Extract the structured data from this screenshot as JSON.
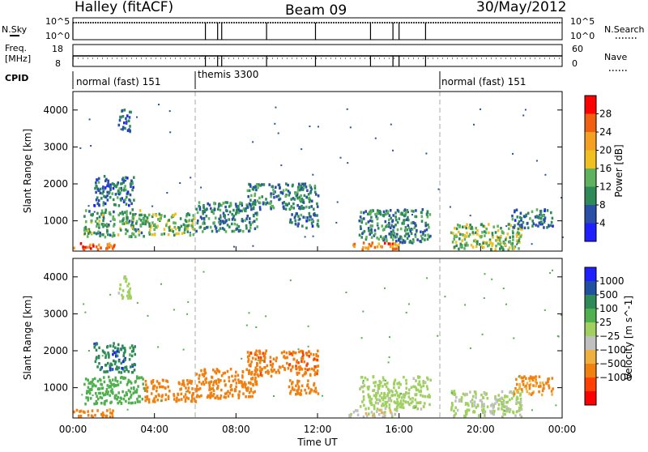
{
  "header": {
    "station": "Halley (fitACF)",
    "beam": "Beam 09",
    "date": "30/May/2012"
  },
  "strips": {
    "nsky_label": "N.Sky",
    "nsky_ticks": [
      "10^5",
      "10^0"
    ],
    "nsearch_label": "N.Search",
    "nsearch_ticks": [
      "10^5",
      "10^0"
    ],
    "freq_label_1": "Freq.",
    "freq_label_2": "[MHz]",
    "freq_ticks": [
      "18",
      "8"
    ],
    "nave_label": "Nave",
    "nave_ticks": [
      "60",
      "0"
    ],
    "cpid_label": "CPID",
    "cpid_segments": [
      "normal (fast) 151",
      "themis 3300",
      "normal (fast) 151"
    ]
  },
  "colors": {
    "power_scale": [
      "#1f1fff",
      "#2a4fa8",
      "#2e8b57",
      "#5fb35f",
      "#f0c020",
      "#f4a020",
      "#f06010",
      "#ff0000"
    ],
    "velocity_scale": [
      "#ff0000",
      "#ff4000",
      "#f08010",
      "#f0b040",
      "#c0c0c0",
      "#a0d060",
      "#50b050",
      "#2e8b57",
      "#2050a0",
      "#1f1fff"
    ]
  },
  "chart_data": [
    {
      "type": "heatmap",
      "title": "",
      "xlabel": "Time UT",
      "ylabel": "Slant Range [km]",
      "x_ticks": [
        "00:00",
        "04:00",
        "08:00",
        "12:00",
        "16:00",
        "20:00",
        "00:00"
      ],
      "xlim": [
        "00:00",
        "24:00"
      ],
      "y_ticks": [
        1000,
        2000,
        3000,
        4000
      ],
      "ylim": [
        180,
        4500
      ],
      "colorbar_label": "Power [dB]",
      "colorbar_ticks": [
        4,
        8,
        12,
        16,
        20,
        24,
        28
      ],
      "cpid_boundaries_hours": [
        6,
        18
      ],
      "echo_regions": [
        {
          "t_start": 0.0,
          "t_end": 2.0,
          "range_min": 200,
          "range_max": 400,
          "power_db": 26
        },
        {
          "t_start": 0.5,
          "t_end": 3.5,
          "range_min": 550,
          "range_max": 1300,
          "power_db": 12
        },
        {
          "t_start": 2.2,
          "t_end": 2.8,
          "range_min": 3400,
          "range_max": 4000,
          "power_db": 6
        },
        {
          "t_start": 1.0,
          "t_end": 3.0,
          "range_min": 1400,
          "range_max": 2200,
          "power_db": 8
        },
        {
          "t_start": 3.5,
          "t_end": 6.0,
          "range_min": 600,
          "range_max": 1200,
          "power_db": 14
        },
        {
          "t_start": 6.0,
          "t_end": 9.0,
          "range_min": 700,
          "range_max": 1500,
          "power_db": 10
        },
        {
          "t_start": 8.5,
          "t_end": 12.0,
          "range_min": 1300,
          "range_max": 2000,
          "power_db": 9
        },
        {
          "t_start": 10.5,
          "t_end": 12.0,
          "range_min": 800,
          "range_max": 1200,
          "power_db": 8
        },
        {
          "t_start": 13.5,
          "t_end": 16.0,
          "range_min": 200,
          "range_max": 400,
          "power_db": 24
        },
        {
          "t_start": 14.0,
          "t_end": 17.5,
          "range_min": 400,
          "range_max": 1300,
          "power_db": 10
        },
        {
          "t_start": 18.5,
          "t_end": 22.0,
          "range_min": 200,
          "range_max": 900,
          "power_db": 14
        },
        {
          "t_start": 21.5,
          "t_end": 23.5,
          "range_min": 800,
          "range_max": 1300,
          "power_db": 8
        }
      ]
    },
    {
      "type": "heatmap",
      "title": "",
      "xlabel": "Time UT",
      "ylabel": "Slant Range [km]",
      "x_ticks": [
        "00:00",
        "04:00",
        "08:00",
        "12:00",
        "16:00",
        "20:00",
        "00:00"
      ],
      "xlim": [
        "00:00",
        "24:00"
      ],
      "y_ticks": [
        1000,
        2000,
        3000,
        4000
      ],
      "ylim": [
        180,
        4500
      ],
      "colorbar_label": "Velocity [m s^-1]",
      "colorbar_ticks": [
        "1000",
        "500",
        "100",
        "25",
        "−25",
        "−100",
        "−500",
        "−1000"
      ],
      "cpid_boundaries_hours": [
        6,
        18
      ],
      "echo_regions": [
        {
          "t_start": 0.0,
          "t_end": 2.0,
          "range_min": 200,
          "range_max": 400,
          "velocity": -150
        },
        {
          "t_start": 0.5,
          "t_end": 3.5,
          "range_min": 550,
          "range_max": 1300,
          "velocity": 200
        },
        {
          "t_start": 2.2,
          "t_end": 2.8,
          "range_min": 3400,
          "range_max": 4000,
          "velocity": 50
        },
        {
          "t_start": 1.0,
          "t_end": 3.0,
          "range_min": 1400,
          "range_max": 2200,
          "velocity": 800
        },
        {
          "t_start": 3.5,
          "t_end": 6.0,
          "range_min": 600,
          "range_max": 1200,
          "velocity": -300
        },
        {
          "t_start": 6.0,
          "t_end": 9.0,
          "range_min": 700,
          "range_max": 1500,
          "velocity": -200
        },
        {
          "t_start": 8.5,
          "t_end": 12.0,
          "range_min": 1300,
          "range_max": 2000,
          "velocity": -400
        },
        {
          "t_start": 10.5,
          "t_end": 12.0,
          "range_min": 800,
          "range_max": 1200,
          "velocity": -150
        },
        {
          "t_start": 13.5,
          "t_end": 16.0,
          "range_min": 200,
          "range_max": 400,
          "velocity": 0
        },
        {
          "t_start": 14.0,
          "t_end": 17.5,
          "range_min": 400,
          "range_max": 1300,
          "velocity": 60
        },
        {
          "t_start": 18.5,
          "t_end": 22.0,
          "range_min": 200,
          "range_max": 900,
          "velocity": 40
        },
        {
          "t_start": 21.5,
          "t_end": 23.5,
          "range_min": 800,
          "range_max": 1300,
          "velocity": -120
        }
      ]
    }
  ],
  "strip_markers_hours": [
    0,
    6.5,
    7.1,
    7.3,
    9.5,
    11.9,
    14.6,
    15.7,
    16.0,
    17.3
  ]
}
